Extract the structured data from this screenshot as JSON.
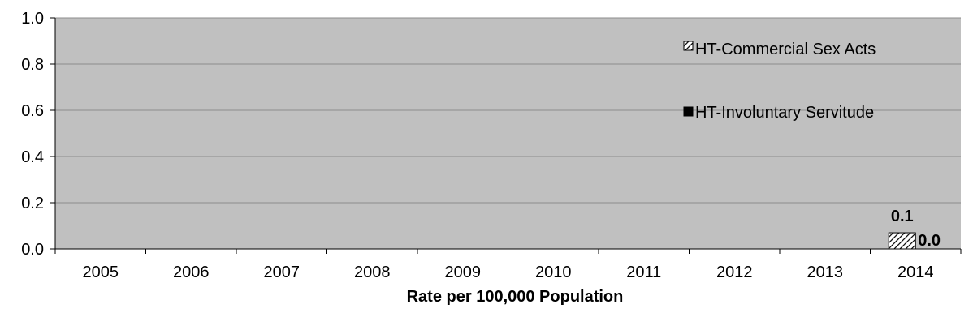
{
  "chart_data": {
    "type": "bar",
    "title": "",
    "xlabel": "Rate per 100,000 Population",
    "ylabel": "",
    "categories": [
      "2005",
      "2006",
      "2007",
      "2008",
      "2009",
      "2010",
      "2011",
      "2012",
      "2013",
      "2014"
    ],
    "series": [
      {
        "name": "HT-Commercial Sex Acts",
        "values": [
          0,
          0,
          0,
          0,
          0,
          0,
          0,
          0,
          0,
          0.07
        ],
        "fill": "hatch",
        "data_labels": [
          "",
          "",
          "",
          "",
          "",
          "",
          "",
          "",
          "",
          "0.1"
        ]
      },
      {
        "name": "HT-Involuntary Servitude",
        "values": [
          0,
          0,
          0,
          0,
          0,
          0,
          0,
          0,
          0,
          0.0
        ],
        "fill": "solid",
        "data_labels": [
          "",
          "",
          "",
          "",
          "",
          "",
          "",
          "",
          "",
          "0.0"
        ]
      }
    ],
    "ylim": [
      0,
      1
    ],
    "yticks": [
      "0.0",
      "0.2",
      "0.4",
      "0.6",
      "0.8",
      "1.0"
    ],
    "grid": true,
    "legend_position": "top-right"
  },
  "colors": {
    "plot_background": "#C0C0C0",
    "gridline": "#8C8C8C",
    "axis": "#000000",
    "bar_solid": "#000000",
    "hatch_stroke": "#000000"
  }
}
